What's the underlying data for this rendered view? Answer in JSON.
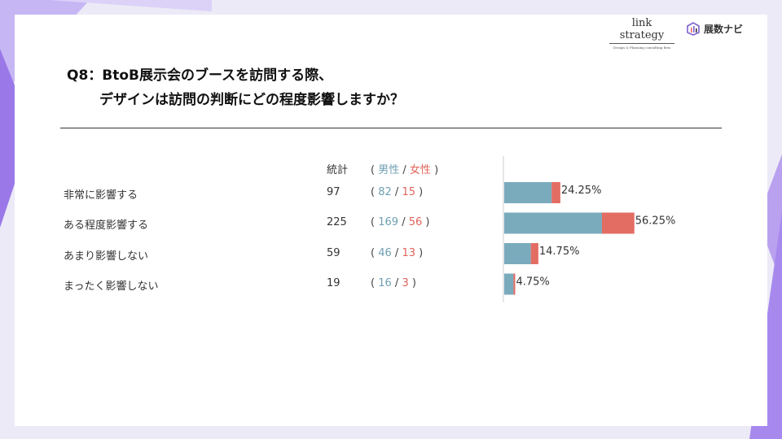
{
  "brand": {
    "link_strategy": "link strategy",
    "link_strategy_sub": "Design & Planning consulting firm",
    "tenji_navi": "展数ナビ"
  },
  "title": {
    "line1": "Q8：BtoB展示会のブースを訪問する際、",
    "line2": "デザインは訪問の判断にどの程度影響しますか？"
  },
  "table": {
    "total_header": "統計",
    "open_paren": "(",
    "close_paren": ")",
    "male_header": "男性",
    "slash": "/",
    "female_header": "女性",
    "rows": [
      {
        "label": "非常に影響する",
        "total": "97",
        "male": "82",
        "female": "15"
      },
      {
        "label": "ある程度影響する",
        "total": "225",
        "male": "169",
        "female": "56"
      },
      {
        "label": "あまり影響しない",
        "total": "59",
        "male": "46",
        "female": "13"
      },
      {
        "label": "まったく影響しない",
        "total": "19",
        "male": "16",
        "female": "3"
      }
    ]
  },
  "colors": {
    "male": "#7aabbd",
    "female": "#e36d63",
    "axis": "#cccccc"
  },
  "chart_data": {
    "type": "bar",
    "orientation": "horizontal",
    "stacked": true,
    "categories": [
      "非常に影響する",
      "ある程度影響する",
      "あまり影響しない",
      "まったく影響しない"
    ],
    "series": [
      {
        "name": "男性",
        "values": [
          82,
          169,
          46,
          16
        ]
      },
      {
        "name": "女性",
        "values": [
          15,
          56,
          13,
          3
        ]
      }
    ],
    "percent_labels": [
      "24.25%",
      "56.25%",
      "14.75%",
      "4.75%"
    ]
  }
}
